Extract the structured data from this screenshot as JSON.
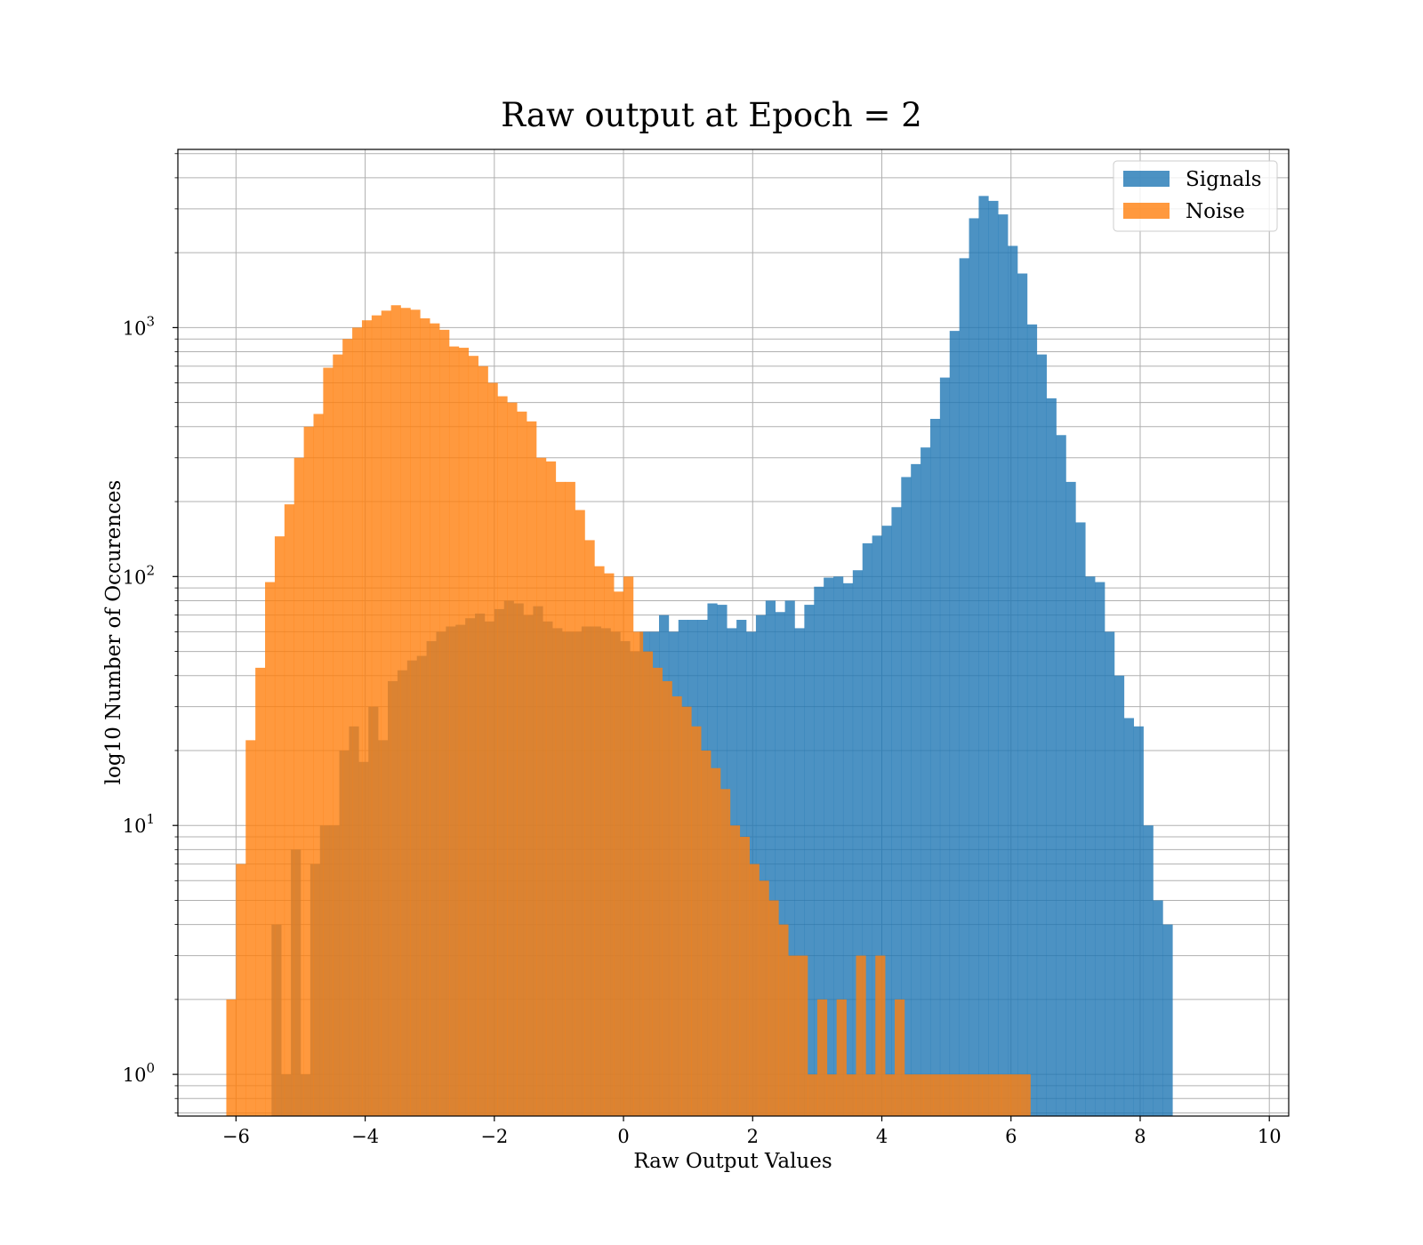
{
  "chart_data": {
    "type": "histogram",
    "title": "Raw output at Epoch = 2",
    "xlabel": "Raw Output Values",
    "ylabel": "log10 Number of Occurences",
    "xlim": [
      -6.9,
      10.3
    ],
    "ylim": [
      0.68,
      5200
    ],
    "yscale": "log",
    "grid": true,
    "legend_position": "top-right",
    "x_ticks": [
      {
        "value": -6,
        "label": "−6"
      },
      {
        "value": -4,
        "label": "−4"
      },
      {
        "value": -2,
        "label": "−2"
      },
      {
        "value": 0,
        "label": "0"
      },
      {
        "value": 2,
        "label": "2"
      },
      {
        "value": 4,
        "label": "4"
      },
      {
        "value": 6,
        "label": "6"
      },
      {
        "value": 8,
        "label": "8"
      },
      {
        "value": 10,
        "label": "10"
      }
    ],
    "y_ticks": [
      {
        "value": 1,
        "base": "10",
        "exp": "0"
      },
      {
        "value": 10,
        "base": "10",
        "exp": "1"
      },
      {
        "value": 100,
        "base": "10",
        "exp": "2"
      },
      {
        "value": 1000,
        "base": "10",
        "exp": "3"
      }
    ],
    "series": [
      {
        "name": "Signals",
        "color": "#1f77b4",
        "opacity": 0.8,
        "bin_start": -5.45,
        "bin_width": 0.15,
        "counts": [
          4,
          1,
          8,
          1,
          7,
          10,
          10,
          20,
          25,
          18,
          30,
          22,
          38,
          42,
          46,
          48,
          55,
          60,
          63,
          64,
          68,
          71,
          66,
          74,
          80,
          78,
          70,
          76,
          66,
          62,
          60,
          60,
          63,
          63,
          62,
          60,
          55,
          50,
          60,
          60,
          70,
          60,
          67,
          67,
          67,
          78,
          77,
          62,
          67,
          60,
          70,
          80,
          72,
          80,
          62,
          77,
          91,
          99,
          100,
          94,
          106,
          136,
          146,
          160,
          190,
          251,
          283,
          330,
          430,
          630,
          970,
          1900,
          2750,
          3380,
          3230,
          2850,
          2130,
          1650,
          1030,
          780,
          520,
          370,
          240,
          165,
          100,
          95,
          60,
          40,
          27,
          25,
          10,
          5,
          4
        ]
      },
      {
        "name": "Noise",
        "color": "#ff7f0e",
        "opacity": 0.8,
        "bin_start": -6.15,
        "bin_width": 0.15,
        "counts": [
          2,
          7,
          22,
          43,
          95,
          145,
          195,
          300,
          400,
          450,
          690,
          780,
          900,
          1000,
          1070,
          1120,
          1170,
          1230,
          1200,
          1180,
          1090,
          1040,
          980,
          840,
          830,
          770,
          700,
          600,
          530,
          500,
          460,
          420,
          300,
          290,
          240,
          240,
          185,
          140,
          110,
          103,
          87,
          100,
          60,
          50,
          43,
          38,
          33,
          30,
          25,
          20,
          17,
          14,
          10,
          9,
          7,
          6,
          5,
          4,
          3,
          3,
          1,
          2,
          1,
          2,
          1,
          3,
          1,
          3,
          1,
          2,
          1,
          1,
          1,
          1,
          1,
          1,
          1,
          1,
          1,
          1,
          1,
          1,
          1
        ]
      }
    ],
    "legend": [
      {
        "label": "Signals",
        "color": "#1f77b4"
      },
      {
        "label": "Noise",
        "color": "#ff7f0e"
      }
    ]
  }
}
